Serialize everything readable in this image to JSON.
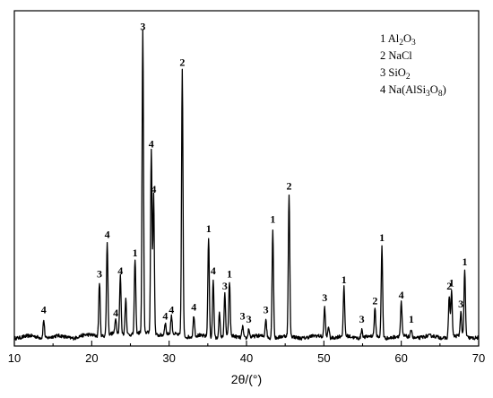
{
  "chart_data": {
    "type": "line",
    "title": "",
    "xlabel": "2θ/(°)",
    "ylabel": "",
    "xlim": [
      10,
      70
    ],
    "xticks": [
      "10",
      "20",
      "30",
      "40",
      "50",
      "60",
      "70"
    ],
    "yaxis_ticks": false,
    "legend": {
      "placement": "top-right",
      "entries": [
        {
          "id": "1",
          "name": "Al",
          "sub1": "2",
          "mid": "O",
          "sub2": "3",
          "tail": ""
        },
        {
          "id": "2",
          "name": "NaCl",
          "sub1": "",
          "mid": "",
          "sub2": "",
          "tail": ""
        },
        {
          "id": "3",
          "name": "SiO",
          "sub1": "2",
          "mid": "",
          "sub2": "",
          "tail": ""
        },
        {
          "id": "4",
          "name": "Na(AlSi",
          "sub1": "3",
          "mid": "O",
          "sub2": "8",
          "tail": ")"
        }
      ]
    },
    "baseline": 0.03,
    "peaks": [
      {
        "x": 13.8,
        "y": 0.06,
        "label": "4"
      },
      {
        "x": 21.0,
        "y": 0.18,
        "label": "3"
      },
      {
        "x": 22.0,
        "y": 0.31,
        "label": "4"
      },
      {
        "x": 23.1,
        "y": 0.05,
        "label": "4"
      },
      {
        "x": 23.7,
        "y": 0.19,
        "label": "4"
      },
      {
        "x": 24.4,
        "y": 0.12,
        "label": ""
      },
      {
        "x": 25.6,
        "y": 0.25,
        "label": "1"
      },
      {
        "x": 26.6,
        "y": 1.0,
        "label": "3"
      },
      {
        "x": 27.7,
        "y": 0.61,
        "label": "4"
      },
      {
        "x": 28.0,
        "y": 0.46,
        "label": "4"
      },
      {
        "x": 29.5,
        "y": 0.04,
        "label": "4"
      },
      {
        "x": 30.3,
        "y": 0.06,
        "label": "4"
      },
      {
        "x": 31.7,
        "y": 0.88,
        "label": "2"
      },
      {
        "x": 33.2,
        "y": 0.07,
        "label": "4"
      },
      {
        "x": 35.1,
        "y": 0.33,
        "label": "1"
      },
      {
        "x": 35.7,
        "y": 0.19,
        "label": "4"
      },
      {
        "x": 36.5,
        "y": 0.08,
        "label": ""
      },
      {
        "x": 37.2,
        "y": 0.14,
        "label": "3"
      },
      {
        "x": 37.8,
        "y": 0.18,
        "label": "1"
      },
      {
        "x": 39.5,
        "y": 0.04,
        "label": "3"
      },
      {
        "x": 40.3,
        "y": 0.03,
        "label": "3"
      },
      {
        "x": 42.5,
        "y": 0.06,
        "label": "3"
      },
      {
        "x": 43.4,
        "y": 0.36,
        "label": "1"
      },
      {
        "x": 45.5,
        "y": 0.47,
        "label": "2"
      },
      {
        "x": 50.1,
        "y": 0.1,
        "label": "3"
      },
      {
        "x": 50.6,
        "y": 0.04,
        "label": ""
      },
      {
        "x": 52.6,
        "y": 0.16,
        "label": "1"
      },
      {
        "x": 54.9,
        "y": 0.03,
        "label": "3"
      },
      {
        "x": 56.6,
        "y": 0.09,
        "label": "2"
      },
      {
        "x": 57.5,
        "y": 0.3,
        "label": "1"
      },
      {
        "x": 60.0,
        "y": 0.11,
        "label": "4"
      },
      {
        "x": 61.3,
        "y": 0.03,
        "label": "1"
      },
      {
        "x": 66.2,
        "y": 0.14,
        "label": "2"
      },
      {
        "x": 66.5,
        "y": 0.15,
        "label": "1"
      },
      {
        "x": 67.7,
        "y": 0.08,
        "label": "3"
      },
      {
        "x": 68.2,
        "y": 0.22,
        "label": "1"
      }
    ]
  }
}
